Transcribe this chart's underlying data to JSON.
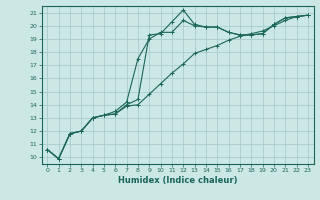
{
  "xlabel": "Humidex (Indice chaleur)",
  "xlim": [
    -0.5,
    23.5
  ],
  "ylim": [
    9.5,
    21.5
  ],
  "xticks": [
    0,
    1,
    2,
    3,
    4,
    5,
    6,
    7,
    8,
    9,
    10,
    11,
    12,
    13,
    14,
    15,
    16,
    17,
    18,
    19,
    20,
    21,
    22,
    23
  ],
  "yticks": [
    10,
    11,
    12,
    13,
    14,
    15,
    16,
    17,
    18,
    19,
    20,
    21
  ],
  "background_color": "#cce8e4",
  "grid_color": "#aaccc8",
  "line_color": "#1a6655",
  "line1_x": [
    0,
    1,
    2,
    3,
    4,
    5,
    6,
    7,
    8,
    9,
    10,
    11,
    12,
    13,
    14,
    15,
    16,
    17,
    18,
    19,
    20,
    21,
    22,
    23
  ],
  "line1_y": [
    10.6,
    9.9,
    11.8,
    12.0,
    13.0,
    13.2,
    13.3,
    14.0,
    14.4,
    19.3,
    19.4,
    20.3,
    21.2,
    20.1,
    19.9,
    19.9,
    19.5,
    19.3,
    19.3,
    19.4,
    20.1,
    20.6,
    20.7,
    20.8
  ],
  "line2_x": [
    0,
    1,
    2,
    3,
    4,
    5,
    6,
    7,
    8,
    9,
    10,
    11,
    12,
    13,
    14,
    15,
    16,
    17,
    18,
    19,
    20,
    21,
    22,
    23
  ],
  "line2_y": [
    10.6,
    9.9,
    11.8,
    12.0,
    13.0,
    13.2,
    13.5,
    14.2,
    17.5,
    19.0,
    19.5,
    19.5,
    20.4,
    20.0,
    19.9,
    19.9,
    19.5,
    19.3,
    19.3,
    19.4,
    20.1,
    20.6,
    20.7,
    20.8
  ],
  "line3_x": [
    0,
    1,
    2,
    3,
    4,
    5,
    6,
    7,
    8,
    9,
    10,
    11,
    12,
    13,
    14,
    15,
    16,
    17,
    18,
    19,
    20,
    21,
    22,
    23
  ],
  "line3_y": [
    10.6,
    9.9,
    11.8,
    12.0,
    13.0,
    13.2,
    13.3,
    13.9,
    14.0,
    14.8,
    15.6,
    16.4,
    17.1,
    17.9,
    18.2,
    18.5,
    18.9,
    19.2,
    19.4,
    19.6,
    20.0,
    20.4,
    20.7,
    20.8
  ]
}
